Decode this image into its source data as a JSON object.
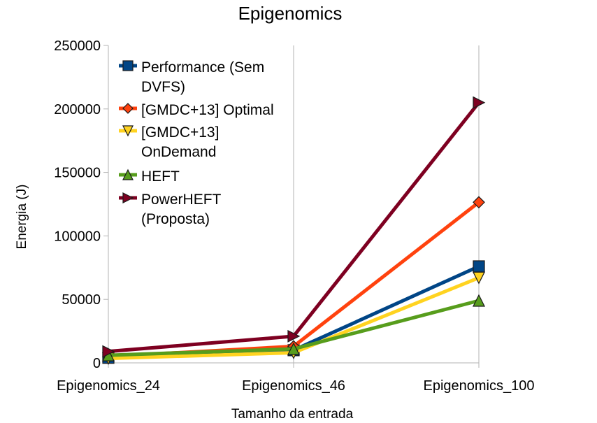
{
  "chart_data": {
    "type": "line",
    "title": "Epigenomics",
    "xlabel": "Tamanho da entrada",
    "ylabel": "Energia (J)",
    "categories": [
      "Epigenomics_24",
      "Epigenomics_46",
      "Epigenomics_100"
    ],
    "ylim": [
      0,
      250000
    ],
    "yticks": [
      0,
      50000,
      100000,
      150000,
      200000,
      250000
    ],
    "grid": "vertical",
    "legend_position": "top-left",
    "series": [
      {
        "name_lines": [
          "Performance (Sem",
          "DVFS)"
        ],
        "color": "#004586",
        "marker": "square",
        "values": [
          4000,
          10000,
          76000
        ]
      },
      {
        "name_lines": [
          "[GMDC+13] Optimal"
        ],
        "color": "#ff420e",
        "marker": "diamond",
        "values": [
          5000,
          13000,
          126500
        ]
      },
      {
        "name_lines": [
          "[GMDC+13]",
          "OnDemand"
        ],
        "color": "#ffd320",
        "marker": "triangle-down",
        "values": [
          3500,
          8000,
          67000
        ]
      },
      {
        "name_lines": [
          "HEFT"
        ],
        "color": "#579d1c",
        "marker": "triangle-up",
        "values": [
          6000,
          11000,
          49000
        ]
      },
      {
        "name_lines": [
          "PowerHEFT",
          "(Proposta)"
        ],
        "color": "#7e0021",
        "marker": "triangle-right",
        "values": [
          9000,
          21000,
          205000
        ]
      }
    ]
  }
}
